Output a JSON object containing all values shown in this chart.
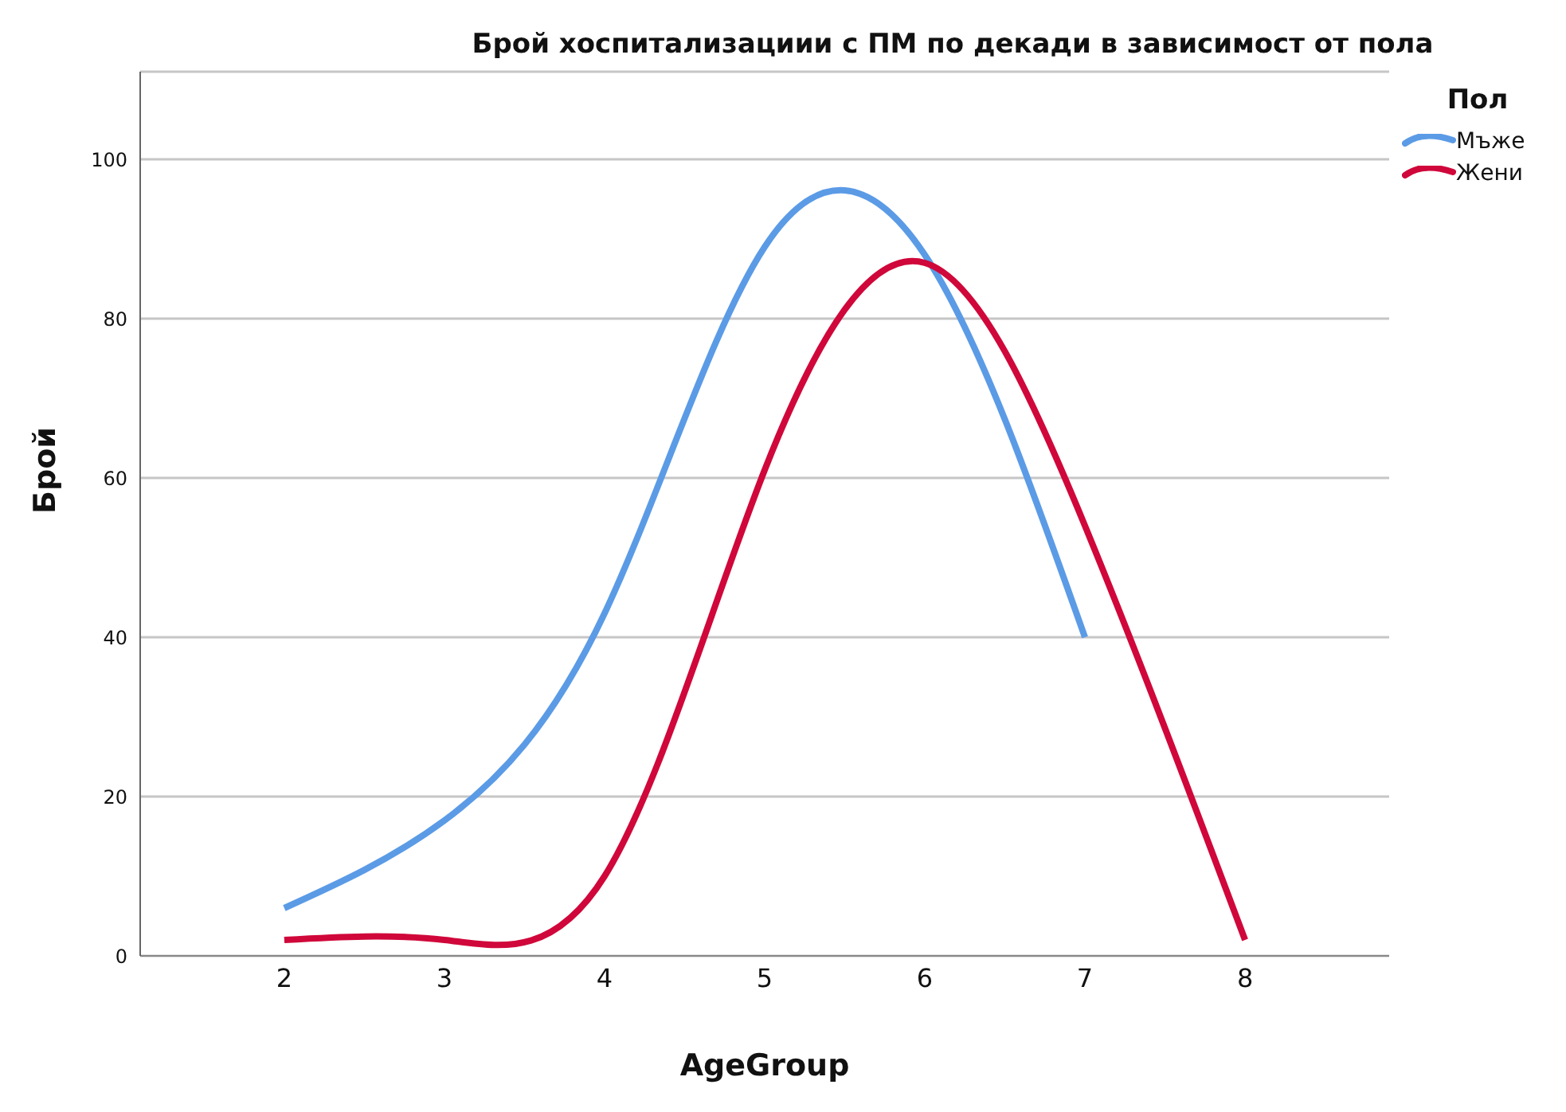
{
  "chart_data": {
    "type": "line",
    "title": "Брой хоспитализациии с ПМ по декади в зависимост от пола",
    "xlabel": "AgeGroup",
    "ylabel": "Брой",
    "legend_title": "Пол",
    "x": [
      2,
      3,
      4,
      5,
      6,
      7,
      8
    ],
    "series": [
      {
        "name": "Мъже",
        "color": "#5b9be6",
        "values": [
          6,
          17,
          43,
          89,
          88,
          40,
          null
        ]
      },
      {
        "name": "Жени",
        "color": "#d0073a",
        "values": [
          2,
          2,
          10,
          61,
          87,
          54,
          2
        ]
      }
    ],
    "xlim": [
      1.1,
      8.9
    ],
    "xticks": [
      2,
      3,
      4,
      5,
      6,
      7,
      8
    ],
    "ylim": [
      0,
      111
    ],
    "yticks": [
      0,
      20,
      40,
      60,
      80,
      100
    ],
    "grid": "y",
    "legend": "top right",
    "marker": "none",
    "line_style": "solid"
  }
}
